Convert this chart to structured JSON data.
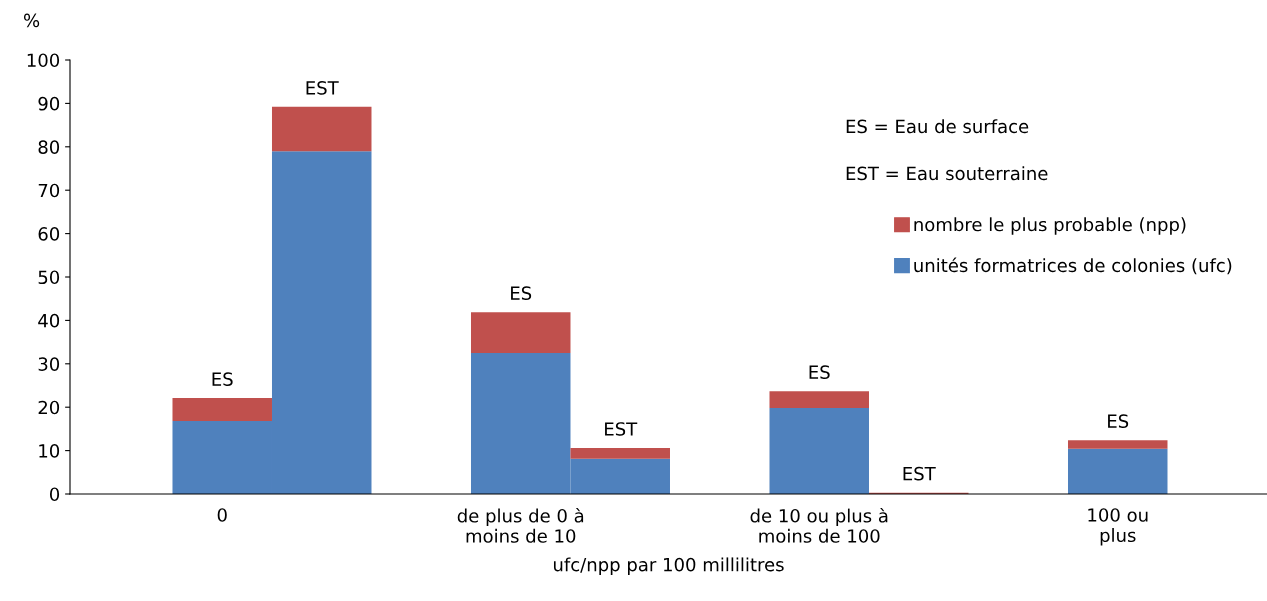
{
  "chart_data": {
    "type": "bar",
    "stacked": true,
    "ylabel": "%",
    "xlabel": "ufc/npp par 100 millilitres",
    "categories": [
      "0",
      null,
      null,
      "de plus de 0 à\nmoins de 10",
      null,
      null,
      "de 10 ou plus à\nmoins de 100",
      null,
      null,
      "100 ou\nplus",
      null
    ],
    "series": [
      {
        "name": "unités formatrices de colonies (ufc)",
        "color": "#4f81bd",
        "values": [
          16.8,
          79.0,
          null,
          32.5,
          8.1,
          null,
          19.8,
          null,
          null,
          10.4,
          null
        ]
      },
      {
        "name": "nombre le plus probable (npp)",
        "color": "#c0504d",
        "values": [
          5.3,
          10.2,
          null,
          9.4,
          2.5,
          null,
          3.9,
          0.3,
          null,
          2.0,
          null
        ],
        "value_labels": [
          "ES",
          "EST",
          null,
          "ES",
          "EST",
          null,
          "ES",
          "EST",
          null,
          "ES",
          null
        ]
      }
    ],
    "ylim": [
      0,
      100
    ],
    "yticks": [
      0,
      10,
      20,
      30,
      40,
      50,
      60,
      70,
      80,
      90,
      100
    ],
    "grid": false,
    "legend": "top right",
    "annotations": [
      "ES = Eau de surface",
      "EST = Eau souterraine"
    ]
  }
}
